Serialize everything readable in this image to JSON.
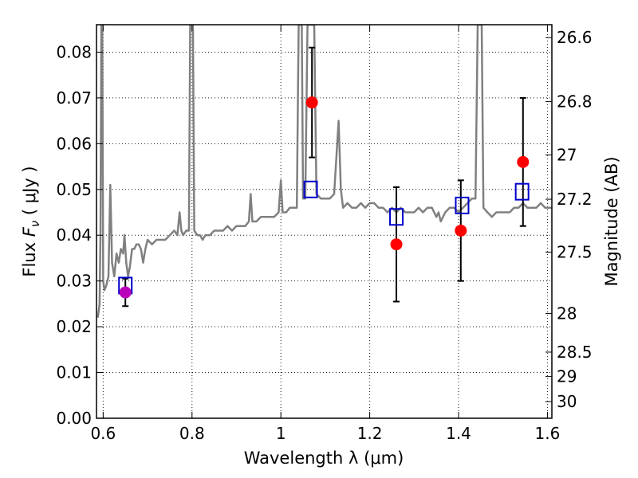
{
  "chart_data": {
    "type": "scatter",
    "title": "",
    "xlabel": "Wavelength  λ (μm)",
    "ylabel": "Flux  F_ν  ( μJy )",
    "ylabel_parts": {
      "pre": "Flux  ",
      "var": "F",
      "sub": "ν",
      "post": "  ( μJy )"
    },
    "y2label": "Magnitude (AB)",
    "xlim": [
      0.585,
      1.61
    ],
    "ylim": [
      0.0,
      0.086
    ],
    "grid": true,
    "x_ticks": [
      {
        "value": 0.6,
        "label": "0.6"
      },
      {
        "value": 0.8,
        "label": "0.8"
      },
      {
        "value": 1.0,
        "label": "1"
      },
      {
        "value": 1.2,
        "label": "1.2"
      },
      {
        "value": 1.4,
        "label": "1.4"
      },
      {
        "value": 1.6,
        "label": "1.6"
      }
    ],
    "y_ticks": [
      {
        "value": 0.0,
        "label": "0.00"
      },
      {
        "value": 0.01,
        "label": "0.01"
      },
      {
        "value": 0.02,
        "label": "0.02"
      },
      {
        "value": 0.03,
        "label": "0.03"
      },
      {
        "value": 0.04,
        "label": "0.04"
      },
      {
        "value": 0.05,
        "label": "0.05"
      },
      {
        "value": 0.06,
        "label": "0.06"
      },
      {
        "value": 0.07,
        "label": "0.07"
      },
      {
        "value": 0.08,
        "label": "0.08"
      }
    ],
    "y2_ticks": [
      {
        "value": 26.6,
        "label": "26.6"
      },
      {
        "value": 26.8,
        "label": "26.8"
      },
      {
        "value": 27.0,
        "label": "27"
      },
      {
        "value": 27.2,
        "label": "27.2"
      },
      {
        "value": 27.5,
        "label": "27.5"
      },
      {
        "value": 28.0,
        "label": "28"
      },
      {
        "value": 28.5,
        "label": "28.5"
      },
      {
        "value": 29.0,
        "label": "29"
      },
      {
        "value": 30.0,
        "label": "30"
      }
    ],
    "model_spectrum": {
      "color": "#808080",
      "points": [
        [
          0.588,
          0.022
        ],
        [
          0.592,
          0.025
        ],
        [
          0.594,
          0.04
        ],
        [
          0.596,
          0.086
        ],
        [
          0.598,
          0.086
        ],
        [
          0.6,
          0.03
        ],
        [
          0.603,
          0.028
        ],
        [
          0.607,
          0.029
        ],
        [
          0.612,
          0.031
        ],
        [
          0.616,
          0.051
        ],
        [
          0.62,
          0.034
        ],
        [
          0.625,
          0.031
        ],
        [
          0.63,
          0.036
        ],
        [
          0.635,
          0.034
        ],
        [
          0.64,
          0.037
        ],
        [
          0.645,
          0.036
        ],
        [
          0.648,
          0.04
        ],
        [
          0.652,
          0.034
        ],
        [
          0.656,
          0.031
        ],
        [
          0.66,
          0.033
        ],
        [
          0.665,
          0.037
        ],
        [
          0.67,
          0.037
        ],
        [
          0.675,
          0.038
        ],
        [
          0.68,
          0.038
        ],
        [
          0.685,
          0.037
        ],
        [
          0.69,
          0.034
        ],
        [
          0.695,
          0.037
        ],
        [
          0.7,
          0.039
        ],
        [
          0.71,
          0.038
        ],
        [
          0.72,
          0.039
        ],
        [
          0.73,
          0.039
        ],
        [
          0.74,
          0.039
        ],
        [
          0.75,
          0.04
        ],
        [
          0.76,
          0.041
        ],
        [
          0.767,
          0.04
        ],
        [
          0.772,
          0.045
        ],
        [
          0.776,
          0.041
        ],
        [
          0.78,
          0.04
        ],
        [
          0.787,
          0.041
        ],
        [
          0.793,
          0.041
        ],
        [
          0.796,
          0.086
        ],
        [
          0.802,
          0.086
        ],
        [
          0.805,
          0.041
        ],
        [
          0.812,
          0.04
        ],
        [
          0.818,
          0.04
        ],
        [
          0.824,
          0.039
        ],
        [
          0.83,
          0.04
        ],
        [
          0.84,
          0.04
        ],
        [
          0.85,
          0.041
        ],
        [
          0.86,
          0.041
        ],
        [
          0.87,
          0.041
        ],
        [
          0.88,
          0.042
        ],
        [
          0.89,
          0.041
        ],
        [
          0.9,
          0.042
        ],
        [
          0.91,
          0.042
        ],
        [
          0.92,
          0.042
        ],
        [
          0.928,
          0.043
        ],
        [
          0.932,
          0.049
        ],
        [
          0.936,
          0.043
        ],
        [
          0.945,
          0.043
        ],
        [
          0.955,
          0.044
        ],
        [
          0.965,
          0.044
        ],
        [
          0.975,
          0.044
        ],
        [
          0.985,
          0.044
        ],
        [
          0.995,
          0.045
        ],
        [
          1.0,
          0.052
        ],
        [
          1.004,
          0.045
        ],
        [
          1.012,
          0.045
        ],
        [
          1.02,
          0.046
        ],
        [
          1.03,
          0.046
        ],
        [
          1.036,
          0.046
        ],
        [
          1.04,
          0.086
        ],
        [
          1.047,
          0.086
        ],
        [
          1.05,
          0.048
        ],
        [
          1.055,
          0.048
        ],
        [
          1.06,
          0.086
        ],
        [
          1.075,
          0.086
        ],
        [
          1.08,
          0.049
        ],
        [
          1.09,
          0.048
        ],
        [
          1.1,
          0.048
        ],
        [
          1.11,
          0.048
        ],
        [
          1.12,
          0.049
        ],
        [
          1.13,
          0.065
        ],
        [
          1.135,
          0.05
        ],
        [
          1.14,
          0.046
        ],
        [
          1.15,
          0.047
        ],
        [
          1.16,
          0.046
        ],
        [
          1.17,
          0.046
        ],
        [
          1.18,
          0.047
        ],
        [
          1.19,
          0.046
        ],
        [
          1.2,
          0.047
        ],
        [
          1.21,
          0.047
        ],
        [
          1.22,
          0.046
        ],
        [
          1.23,
          0.046
        ],
        [
          1.24,
          0.045
        ],
        [
          1.25,
          0.046
        ],
        [
          1.26,
          0.045
        ],
        [
          1.27,
          0.046
        ],
        [
          1.28,
          0.045
        ],
        [
          1.29,
          0.045
        ],
        [
          1.3,
          0.045
        ],
        [
          1.31,
          0.046
        ],
        [
          1.32,
          0.045
        ],
        [
          1.33,
          0.046
        ],
        [
          1.34,
          0.046
        ],
        [
          1.35,
          0.044
        ],
        [
          1.355,
          0.045
        ],
        [
          1.36,
          0.043
        ],
        [
          1.37,
          0.045
        ],
        [
          1.38,
          0.046
        ],
        [
          1.39,
          0.046
        ],
        [
          1.4,
          0.045
        ],
        [
          1.41,
          0.046
        ],
        [
          1.42,
          0.047
        ],
        [
          1.43,
          0.048
        ],
        [
          1.438,
          0.048
        ],
        [
          1.443,
          0.086
        ],
        [
          1.452,
          0.086
        ],
        [
          1.456,
          0.046
        ],
        [
          1.465,
          0.045
        ],
        [
          1.475,
          0.044
        ],
        [
          1.485,
          0.045
        ],
        [
          1.495,
          0.045
        ],
        [
          1.505,
          0.045
        ],
        [
          1.515,
          0.045
        ],
        [
          1.525,
          0.046
        ],
        [
          1.535,
          0.046
        ],
        [
          1.545,
          0.047
        ],
        [
          1.555,
          0.046
        ],
        [
          1.565,
          0.046
        ],
        [
          1.575,
          0.046
        ],
        [
          1.585,
          0.047
        ],
        [
          1.595,
          0.046
        ],
        [
          1.605,
          0.046
        ],
        [
          1.61,
          0.046
        ]
      ]
    },
    "model_points": {
      "color": "#0000cc",
      "points": [
        {
          "x": 0.65,
          "y": 0.029
        },
        {
          "x": 1.067,
          "y": 0.05
        },
        {
          "x": 1.26,
          "y": 0.044
        },
        {
          "x": 1.408,
          "y": 0.0465
        },
        {
          "x": 1.543,
          "y": 0.0495
        }
      ]
    },
    "observed_points": {
      "points": [
        {
          "x": 0.65,
          "y": 0.0275,
          "err": 0.003,
          "color": "#bb00bb"
        },
        {
          "x": 1.07,
          "y": 0.069,
          "err": 0.012,
          "color": "#ff0000"
        },
        {
          "x": 1.26,
          "y": 0.038,
          "err": 0.0125,
          "color": "#ff0000"
        },
        {
          "x": 1.405,
          "y": 0.041,
          "err": 0.011,
          "color": "#ff0000"
        },
        {
          "x": 1.545,
          "y": 0.056,
          "err": 0.014,
          "color": "#ff0000"
        }
      ]
    }
  }
}
